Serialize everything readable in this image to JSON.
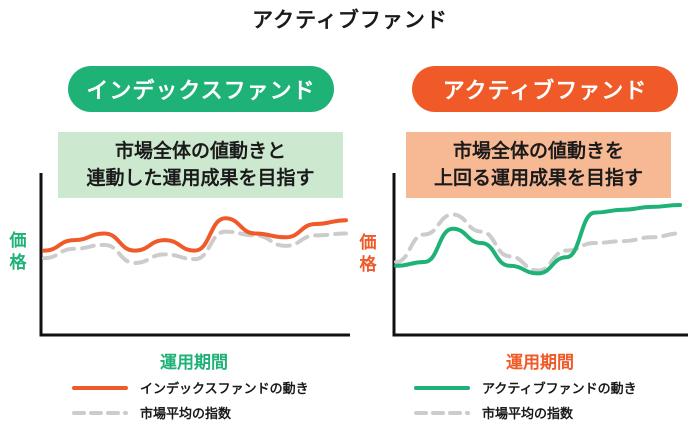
{
  "title": "アクティブファンド",
  "panels": [
    {
      "header": "インデックスファンド",
      "description": [
        "市場全体の値動きと",
        "連動した運用成果を目指す"
      ],
      "y_axis_label": "価格",
      "x_axis_label": "運用期間",
      "legend": [
        "インデックスファンドの動き",
        "市場平均の指数"
      ],
      "header_color": "#1fb277",
      "description_bg": "#cce8cf",
      "fund_color": "#ef5a28",
      "index_color": "#cccccc"
    },
    {
      "header": "アクティブファンド",
      "description": [
        "市場全体の値動きを",
        "上回る運用成果を目指す"
      ],
      "y_axis_label": "価格",
      "x_axis_label": "運用期間",
      "legend": [
        "アクティブファンドの動き",
        "市場平均の指数"
      ],
      "header_color": "#ef5a28",
      "description_bg": "#f6b994",
      "fund_color": "#1fb277",
      "index_color": "#cccccc"
    }
  ],
  "chart_data": [
    {
      "type": "line",
      "title": "インデックスファンド",
      "xlabel": "運用期間",
      "ylabel": "価格",
      "x": [
        0,
        1,
        2,
        3,
        4,
        5,
        6,
        7,
        8,
        9,
        10
      ],
      "ylim": [
        0,
        100
      ],
      "series": [
        {
          "name": "インデックスファンドの動き",
          "values": [
            52,
            63,
            70,
            52,
            63,
            52,
            86,
            70,
            66,
            80,
            84
          ]
        },
        {
          "name": "市場平均の指数",
          "values": [
            44,
            54,
            58,
            39,
            48,
            43,
            72,
            68,
            57,
            68,
            70
          ]
        }
      ]
    },
    {
      "type": "line",
      "title": "アクティブファンド",
      "xlabel": "運用期間",
      "ylabel": "価格",
      "x": [
        0,
        1,
        2,
        3,
        4,
        5,
        6,
        7,
        8,
        9,
        10
      ],
      "ylim": [
        0,
        100
      ],
      "series": [
        {
          "name": "アクティブファンドの動き",
          "values": [
            36,
            40,
            75,
            60,
            36,
            28,
            45,
            92,
            95,
            98,
            100
          ]
        },
        {
          "name": "市場平均の指数",
          "values": [
            40,
            69,
            90,
            72,
            46,
            31,
            52,
            60,
            62,
            66,
            70
          ]
        }
      ]
    }
  ]
}
